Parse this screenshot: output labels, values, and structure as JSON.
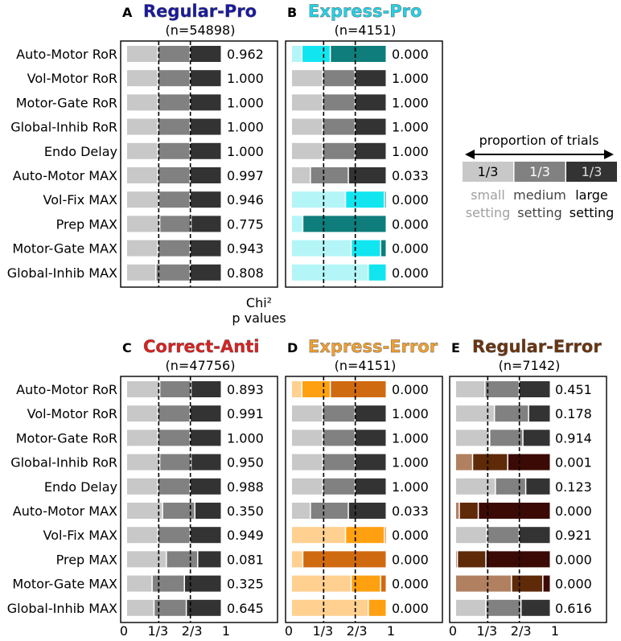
{
  "chart_data": {
    "type": "bar",
    "subtype": "stacked-horizontal-proportion",
    "x_tick_labels": [
      "0",
      "1/3",
      "2/3",
      "1"
    ],
    "xlim": [
      0,
      1
    ],
    "dashed_lines_at": [
      0.3333,
      0.6667
    ],
    "p_value_header": [
      "Chi²",
      "p values"
    ],
    "rows": [
      "Auto-Motor RoR",
      "Vol-Motor RoR",
      "Motor-Gate RoR",
      "Global-Inhib RoR",
      "Endo Delay",
      "Auto-Motor MAX",
      "Vol-Fix MAX",
      "Prep MAX",
      "Motor-Gate MAX",
      "Global-Inhib MAX"
    ],
    "legend": {
      "title": "proportion of trials",
      "segment_label": "1/3",
      "settings": [
        {
          "line1": "small",
          "line2": "setting"
        },
        {
          "line1": "medium",
          "line2": "setting"
        },
        {
          "line1": "large",
          "line2": "setting"
        }
      ]
    },
    "panels": [
      {
        "letter": "A",
        "title": "Regular-Pro",
        "title_color": "#1a1aa0",
        "n": "(n=54898)",
        "neutral": true,
        "rows": [
          {
            "values": [
              0.33,
              0.34,
              0.33
            ],
            "p": "0.962"
          },
          {
            "values": [
              0.33,
              0.34,
              0.33
            ],
            "p": "1.000"
          },
          {
            "values": [
              0.33,
              0.34,
              0.33
            ],
            "p": "1.000"
          },
          {
            "values": [
              0.33,
              0.34,
              0.33
            ],
            "p": "1.000"
          },
          {
            "values": [
              0.33,
              0.34,
              0.33
            ],
            "p": "1.000"
          },
          {
            "values": [
              0.33,
              0.34,
              0.33
            ],
            "p": "0.997"
          },
          {
            "values": [
              0.34,
              0.33,
              0.33
            ],
            "p": "0.946"
          },
          {
            "values": [
              0.35,
              0.33,
              0.32
            ],
            "p": "0.775"
          },
          {
            "values": [
              0.33,
              0.34,
              0.33
            ],
            "p": "0.943"
          },
          {
            "values": [
              0.31,
              0.36,
              0.33
            ],
            "p": "0.808"
          }
        ]
      },
      {
        "letter": "B",
        "title": "Express-Pro",
        "title_color": "#22d2e6",
        "n": "(n=4151)",
        "neutral": false,
        "colors": [
          "#b4f5f8",
          "#11e6f0",
          "#0e7d7b"
        ],
        "rows": [
          {
            "values": [
              0.11,
              0.3,
              0.59
            ],
            "p": "0.000",
            "sig": true
          },
          {
            "values": [
              0.33,
              0.34,
              0.33
            ],
            "p": "1.000"
          },
          {
            "values": [
              0.33,
              0.34,
              0.33
            ],
            "p": "1.000"
          },
          {
            "values": [
              0.33,
              0.34,
              0.33
            ],
            "p": "1.000"
          },
          {
            "values": [
              0.33,
              0.34,
              0.33
            ],
            "p": "1.000"
          },
          {
            "values": [
              0.2,
              0.4,
              0.4
            ],
            "p": "0.033"
          },
          {
            "values": [
              0.57,
              0.41,
              0.02
            ],
            "p": "0.000",
            "sig": true
          },
          {
            "values": [
              0.12,
              0.0,
              0.88
            ],
            "p": "0.000",
            "sig": true
          },
          {
            "values": [
              0.63,
              0.31,
              0.06
            ],
            "p": "0.000",
            "sig": true
          },
          {
            "values": [
              0.81,
              0.19,
              0.0
            ],
            "p": "0.000",
            "sig": true
          }
        ]
      },
      {
        "letter": "C",
        "title": "Correct-Anti",
        "title_color": "#dd2020",
        "n": "(n=47756)",
        "neutral": true,
        "rows": [
          {
            "values": [
              0.35,
              0.33,
              0.32
            ],
            "p": "0.893"
          },
          {
            "values": [
              0.33,
              0.34,
              0.33
            ],
            "p": "0.991"
          },
          {
            "values": [
              0.33,
              0.34,
              0.33
            ],
            "p": "1.000"
          },
          {
            "values": [
              0.35,
              0.33,
              0.32
            ],
            "p": "0.950"
          },
          {
            "values": [
              0.33,
              0.34,
              0.33
            ],
            "p": "0.988"
          },
          {
            "values": [
              0.38,
              0.34,
              0.28
            ],
            "p": "0.350"
          },
          {
            "values": [
              0.33,
              0.34,
              0.33
            ],
            "p": "0.949"
          },
          {
            "values": [
              0.42,
              0.33,
              0.25
            ],
            "p": "0.081"
          },
          {
            "values": [
              0.27,
              0.34,
              0.39
            ],
            "p": "0.325"
          },
          {
            "values": [
              0.29,
              0.34,
              0.37
            ],
            "p": "0.645"
          }
        ]
      },
      {
        "letter": "D",
        "title": "Express-Error",
        "title_color": "#f0a030",
        "n": "(n=4151)",
        "neutral": false,
        "colors": [
          "#ffd090",
          "#ffa010",
          "#d06a10"
        ],
        "rows": [
          {
            "values": [
              0.11,
              0.3,
              0.59
            ],
            "p": "0.000",
            "sig": true
          },
          {
            "values": [
              0.33,
              0.34,
              0.33
            ],
            "p": "1.000"
          },
          {
            "values": [
              0.33,
              0.34,
              0.33
            ],
            "p": "1.000"
          },
          {
            "values": [
              0.33,
              0.34,
              0.33
            ],
            "p": "1.000"
          },
          {
            "values": [
              0.33,
              0.34,
              0.33
            ],
            "p": "1.000"
          },
          {
            "values": [
              0.2,
              0.4,
              0.4
            ],
            "p": "0.033"
          },
          {
            "values": [
              0.57,
              0.41,
              0.02
            ],
            "p": "0.000",
            "sig": true
          },
          {
            "values": [
              0.12,
              0.0,
              0.88
            ],
            "p": "0.000",
            "sig": true
          },
          {
            "values": [
              0.63,
              0.31,
              0.06
            ],
            "p": "0.000",
            "sig": true
          },
          {
            "values": [
              0.81,
              0.19,
              0.0
            ],
            "p": "0.000",
            "sig": true
          }
        ]
      },
      {
        "letter": "E",
        "title": "Regular-Error",
        "title_color": "#6b3510",
        "n": "(n=7142)",
        "neutral": false,
        "colors": [
          "#b08060",
          "#5e2a08",
          "#3c0a04"
        ],
        "rows": [
          {
            "values": [
              0.31,
              0.36,
              0.33
            ],
            "p": "0.451"
          },
          {
            "values": [
              0.41,
              0.36,
              0.23
            ],
            "p": "0.178"
          },
          {
            "values": [
              0.36,
              0.35,
              0.29
            ],
            "p": "0.914"
          },
          {
            "values": [
              0.18,
              0.37,
              0.45
            ],
            "p": "0.001",
            "sig": true
          },
          {
            "values": [
              0.42,
              0.32,
              0.26
            ],
            "p": "0.123"
          },
          {
            "values": [
              0.04,
              0.2,
              0.76
            ],
            "p": "0.000",
            "sig": true
          },
          {
            "values": [
              0.33,
              0.34,
              0.33
            ],
            "p": "0.921"
          },
          {
            "values": [
              0.02,
              0.3,
              0.68
            ],
            "p": "0.000",
            "sig": true
          },
          {
            "values": [
              0.59,
              0.33,
              0.08
            ],
            "p": "0.000",
            "sig": true
          },
          {
            "values": [
              0.32,
              0.37,
              0.31
            ],
            "p": "0.616"
          }
        ]
      }
    ]
  }
}
